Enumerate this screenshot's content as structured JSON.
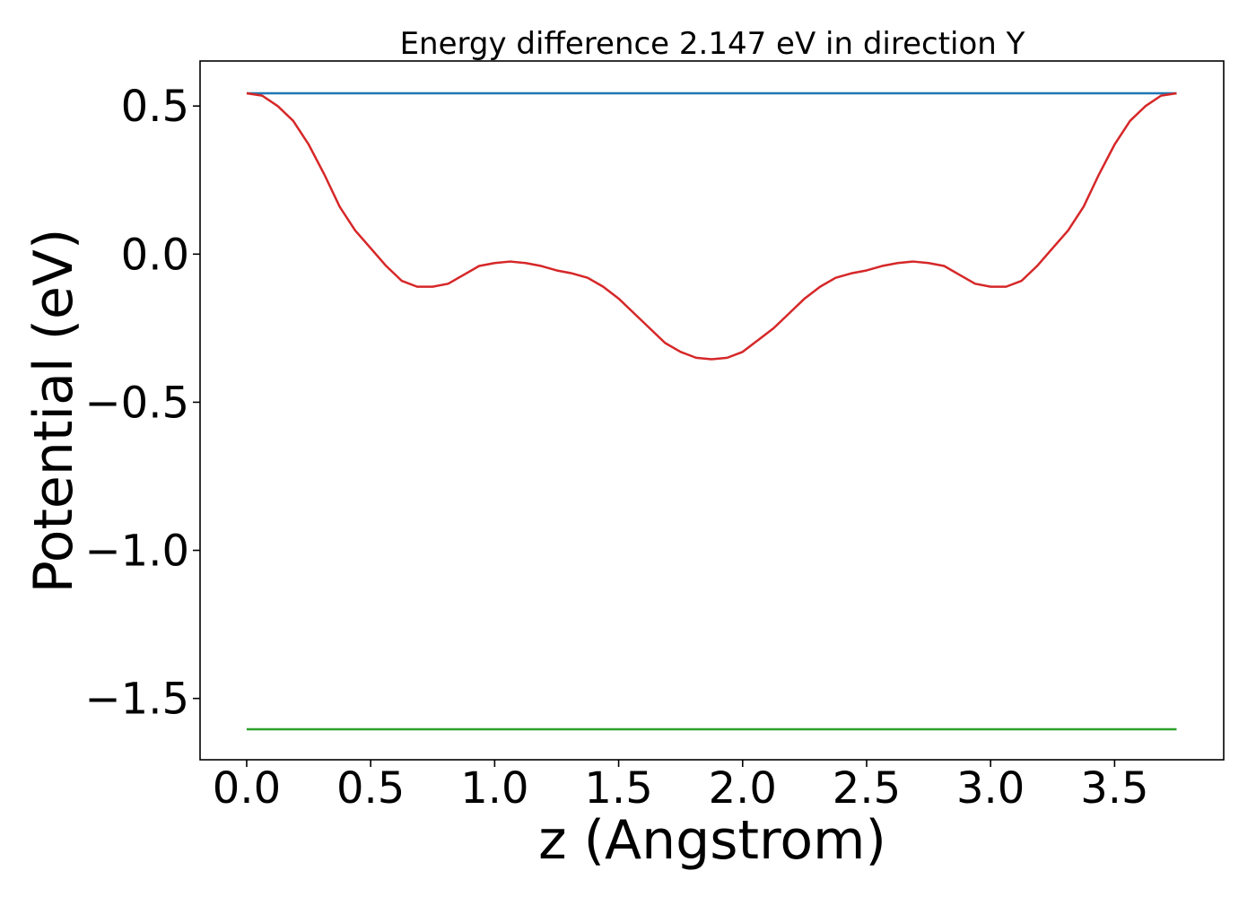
{
  "chart_data": {
    "type": "line",
    "title": "Energy difference 2.147 eV in direction Y",
    "xlabel": "z (Angstrom)",
    "ylabel": "Potential (eV)",
    "xlim": [
      -0.188,
      3.94
    ],
    "ylim": [
      -1.707,
      0.652
    ],
    "x_ticks": [
      0.0,
      0.5,
      1.0,
      1.5,
      2.0,
      2.5,
      3.0,
      3.5
    ],
    "x_tick_labels": [
      "0.0",
      "0.5",
      "1.0",
      "1.5",
      "2.0",
      "2.5",
      "3.0",
      "3.5"
    ],
    "y_ticks": [
      0.5,
      0.0,
      -0.5,
      -1.0,
      -1.5
    ],
    "y_tick_labels": [
      "0.5",
      "0.0",
      "−0.5",
      "−1.0",
      "−1.5"
    ],
    "grid": false,
    "series": [
      {
        "color": "#1f77b4",
        "x": [
          0.0,
          3.75
        ],
        "y": [
          0.543,
          0.543
        ]
      },
      {
        "color": "#d62728",
        "x": [
          0.0,
          0.0625,
          0.125,
          0.1875,
          0.25,
          0.3125,
          0.375,
          0.4375,
          0.5,
          0.5625,
          0.625,
          0.6875,
          0.75,
          0.8125,
          0.875,
          0.9375,
          1.0,
          1.0625,
          1.125,
          1.1875,
          1.25,
          1.3125,
          1.375,
          1.4375,
          1.5,
          1.5625,
          1.625,
          1.6875,
          1.75,
          1.8125,
          1.875,
          1.9375,
          2.0,
          2.0625,
          2.125,
          2.1875,
          2.25,
          2.3125,
          2.375,
          2.4375,
          2.5,
          2.5625,
          2.625,
          2.6875,
          2.75,
          2.8125,
          2.875,
          2.9375,
          3.0,
          3.0625,
          3.125,
          3.1875,
          3.25,
          3.3125,
          3.375,
          3.4375,
          3.5,
          3.5625,
          3.625,
          3.6875,
          3.75
        ],
        "y": [
          0.543,
          0.535,
          0.5,
          0.45,
          0.37,
          0.27,
          0.16,
          0.08,
          0.02,
          -0.04,
          -0.09,
          -0.11,
          -0.11,
          -0.1,
          -0.07,
          -0.04,
          -0.03,
          -0.025,
          -0.03,
          -0.04,
          -0.055,
          -0.065,
          -0.08,
          -0.11,
          -0.15,
          -0.2,
          -0.25,
          -0.3,
          -0.33,
          -0.35,
          -0.355,
          -0.35,
          -0.33,
          -0.29,
          -0.25,
          -0.2,
          -0.15,
          -0.11,
          -0.08,
          -0.065,
          -0.055,
          -0.04,
          -0.03,
          -0.025,
          -0.03,
          -0.04,
          -0.07,
          -0.1,
          -0.11,
          -0.11,
          -0.09,
          -0.04,
          0.02,
          0.08,
          0.16,
          0.27,
          0.37,
          0.45,
          0.5,
          0.535,
          0.543
        ]
      },
      {
        "color": "#2ca02c",
        "x": [
          0.0,
          3.75
        ],
        "y": [
          -1.604,
          -1.604
        ]
      }
    ]
  }
}
